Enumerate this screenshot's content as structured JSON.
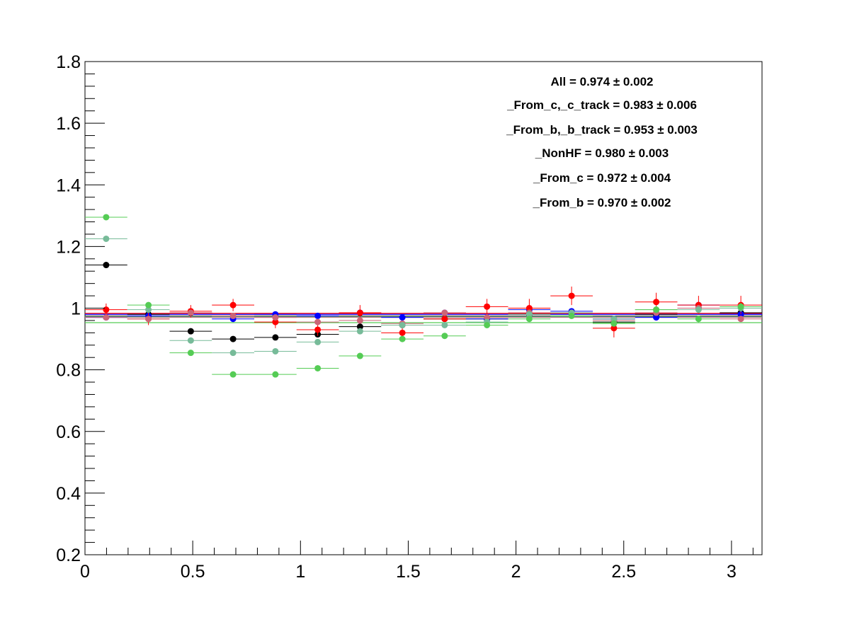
{
  "chart_data": {
    "type": "scatter",
    "title": "",
    "xlabel": "",
    "ylabel": "",
    "xlim": [
      0,
      3.1416
    ],
    "ylim": [
      0.2,
      1.8
    ],
    "grid": false,
    "legend_position": "top-right",
    "x_ticks": [
      0,
      0.5,
      1,
      1.5,
      2,
      2.5,
      3
    ],
    "x_tick_labels": [
      "0",
      "0.5",
      "1",
      "1.5",
      "2",
      "2.5",
      "3"
    ],
    "y_ticks": [
      0.2,
      0.4,
      0.6,
      0.8,
      1,
      1.2,
      1.4,
      1.6,
      1.8
    ],
    "y_tick_labels": [
      "0.2",
      "0.4",
      "0.6",
      "0.8",
      "1",
      "1.2",
      "1.4",
      "1.6",
      "1.8"
    ],
    "bin_half_width": 0.0982,
    "x": [
      0.0982,
      0.2945,
      0.4909,
      0.6872,
      0.8836,
      1.0799,
      1.2763,
      1.4726,
      1.669,
      1.8653,
      2.0617,
      2.258,
      2.4544,
      2.6507,
      2.8471,
      3.0434
    ],
    "annotations": [
      "All = 0.974 ± 0.002",
      "_From_c,_c_track = 0.983 ± 0.006",
      "_From_b,_b_track = 0.953 ± 0.003",
      "_NonHF = 0.980 ± 0.003",
      "_From_c = 0.972 ± 0.004",
      "_From_b = 0.970 ± 0.002"
    ],
    "series": [
      {
        "color": "#000000",
        "fit": 0.974,
        "values": [
          1.14,
          0.98,
          0.925,
          0.9,
          0.905,
          0.915,
          0.94,
          0.945,
          0.965,
          0.965,
          0.98,
          0.985,
          0.955,
          0.98,
          1.0,
          0.985
        ],
        "errors": [
          0.01,
          0.01,
          0.008,
          0.008,
          0.008,
          0.008,
          0.008,
          0.009,
          0.009,
          0.01,
          0.01,
          0.01,
          0.01,
          0.011,
          0.011,
          0.012
        ]
      },
      {
        "color": "#0000ff",
        "fit": 0.98,
        "values": [
          0.97,
          0.975,
          0.985,
          0.965,
          0.98,
          0.975,
          0.985,
          0.97,
          0.985,
          0.965,
          0.995,
          0.99,
          0.965,
          0.97,
          1.01,
          0.98
        ],
        "errors": [
          0.008,
          0.008,
          0.008,
          0.008,
          0.008,
          0.008,
          0.009,
          0.009,
          0.009,
          0.01,
          0.01,
          0.01,
          0.01,
          0.01,
          0.011,
          0.011
        ]
      },
      {
        "color": "#ff0000",
        "fit": 0.983,
        "values": [
          0.995,
          0.965,
          0.99,
          1.01,
          0.955,
          0.93,
          0.985,
          0.92,
          0.965,
          1.005,
          1.0,
          1.04,
          0.935,
          1.02,
          1.01,
          1.01
        ],
        "errors": [
          0.02,
          0.02,
          0.02,
          0.02,
          0.02,
          0.02,
          0.025,
          0.025,
          0.025,
          0.025,
          0.03,
          0.03,
          0.03,
          0.03,
          0.03,
          0.03
        ]
      },
      {
        "color": "#cc6677",
        "fit": 0.97,
        "values": [
          0.97,
          0.965,
          0.985,
          0.975,
          0.97,
          0.955,
          0.96,
          0.95,
          0.985,
          0.97,
          0.985,
          0.985,
          0.96,
          0.985,
          1.0,
          0.965
        ],
        "errors": [
          0.006,
          0.006,
          0.006,
          0.006,
          0.006,
          0.006,
          0.006,
          0.006,
          0.007,
          0.007,
          0.007,
          0.007,
          0.007,
          0.008,
          0.008,
          0.008
        ]
      },
      {
        "color": "#77bb99",
        "fit": 0.972,
        "values": [
          1.225,
          0.995,
          0.895,
          0.855,
          0.86,
          0.89,
          0.925,
          0.945,
          0.945,
          0.955,
          0.98,
          0.985,
          0.965,
          0.995,
          0.995,
          1.0
        ],
        "errors": [
          0.01,
          0.01,
          0.008,
          0.008,
          0.008,
          0.008,
          0.008,
          0.008,
          0.009,
          0.009,
          0.01,
          0.01,
          0.01,
          0.011,
          0.011,
          0.012
        ]
      },
      {
        "color": "#55cc55",
        "fit": 0.953,
        "values": [
          1.295,
          1.01,
          0.855,
          0.785,
          0.785,
          0.805,
          0.845,
          0.9,
          0.91,
          0.945,
          0.965,
          0.975,
          0.95,
          0.995,
          0.965,
          1.005
        ],
        "errors": [
          0.008,
          0.008,
          0.008,
          0.008,
          0.008,
          0.008,
          0.009,
          0.009,
          0.009,
          0.01,
          0.01,
          0.01,
          0.01,
          0.011,
          0.011,
          0.012
        ]
      }
    ]
  }
}
